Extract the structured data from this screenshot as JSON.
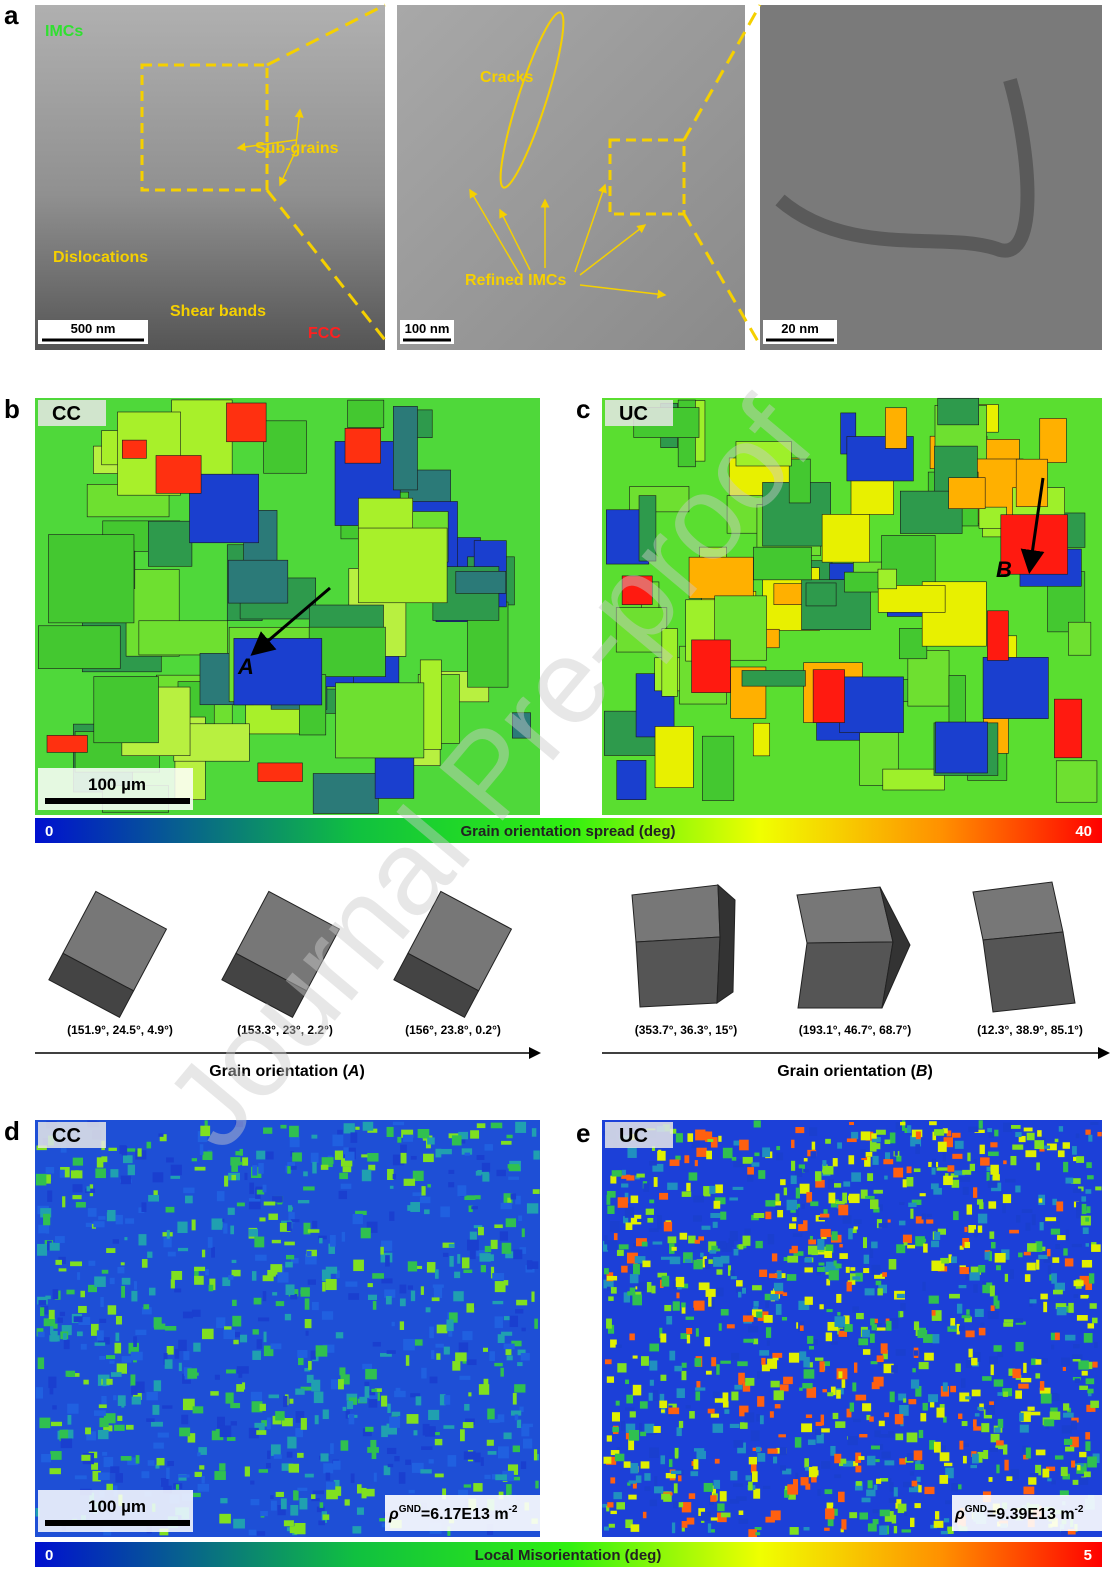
{
  "panel_a": {
    "label": "a",
    "image1": {
      "labels": [
        "IMCs",
        "Sub-grains",
        "Dislocations",
        "Shear bands",
        "FCC"
      ],
      "scale": "500 nm"
    },
    "image2": {
      "labels": [
        "Cracks",
        "Refined IMCs"
      ],
      "scale": "100 nm"
    },
    "image3": {
      "scale": "20 nm"
    }
  },
  "panel_b": {
    "label": "b",
    "tag": "CC",
    "marker": "A",
    "scale": "100 µm"
  },
  "panel_c": {
    "label": "c",
    "tag": "UC",
    "marker": "B"
  },
  "colorbar_gos": {
    "min": "0",
    "title": "Grain orientation spread (deg)",
    "max": "40"
  },
  "orientations_a": {
    "cubes": [
      "(151.9°, 24.5°, 4.9°)",
      "(153.3°, 23°, 2.2°)",
      "(156°, 23.8°, 0.2°)"
    ],
    "caption_prefix": "Grain orientation (",
    "caption_var": "A",
    "caption_suffix": ")"
  },
  "orientations_b": {
    "cubes": [
      "(353.7°, 36.3°, 15°)",
      "(193.1°, 46.7°, 68.7°)",
      "(12.3°, 38.9°, 85.1°)"
    ],
    "caption_prefix": "Grain orientation (",
    "caption_var": "B",
    "caption_suffix": ")"
  },
  "panel_d": {
    "label": "d",
    "tag": "CC",
    "scale": "100 µm",
    "density": {
      "symbol": "ρ",
      "sup": "GND",
      "value": "=6.17E13 m",
      "exp": "-2"
    }
  },
  "panel_e": {
    "label": "e",
    "tag": "UC",
    "density": {
      "symbol": "ρ",
      "sup": "GND",
      "value": "=9.39E13 m",
      "exp": "-2"
    }
  },
  "colorbar_lm": {
    "min": "0",
    "title": "Local Misorientation (deg)",
    "max": "5"
  },
  "watermark": "Journal Pre-proof"
}
